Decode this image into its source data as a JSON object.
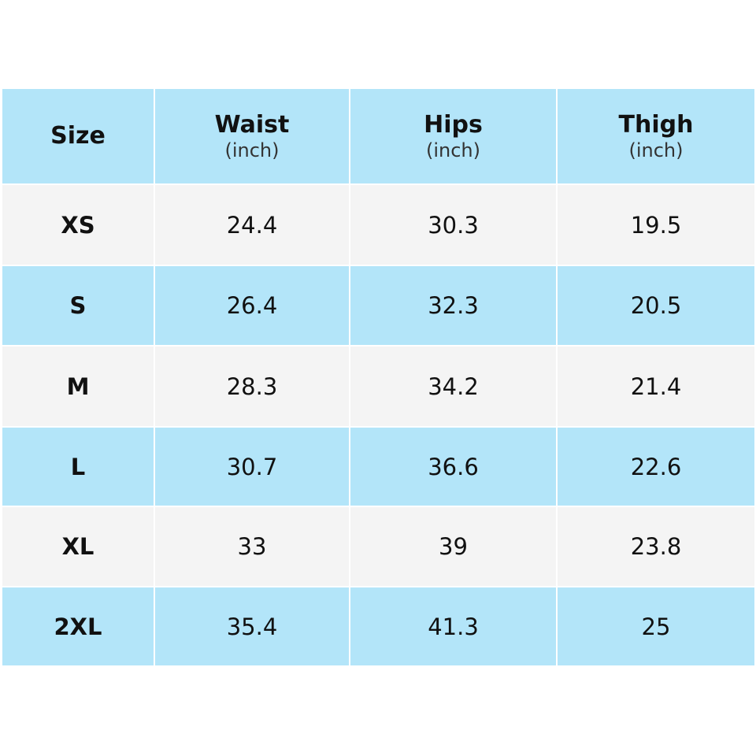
{
  "table": {
    "header": [
      {
        "title": "Size"
      },
      {
        "title": "Waist",
        "unit": "(inch)"
      },
      {
        "title": "Hips",
        "unit": "(inch)"
      },
      {
        "title": "Thigh",
        "unit": "(inch)"
      }
    ],
    "rows": [
      [
        "XS",
        24.4,
        30.3,
        19.5
      ],
      [
        "S",
        26.4,
        32.3,
        20.5
      ],
      [
        "M",
        28.3,
        34.2,
        21.4
      ],
      [
        "L",
        30.7,
        36.6,
        22.6
      ],
      [
        "XL",
        33,
        39,
        23.8
      ],
      [
        "2XL",
        35.4,
        41.3,
        25
      ]
    ]
  }
}
